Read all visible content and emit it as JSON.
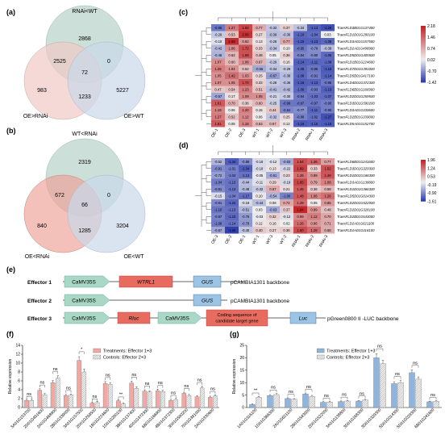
{
  "panels": {
    "a": "(a)",
    "b": "(b)",
    "c": "(c)",
    "d": "(d)",
    "e": "(e)",
    "f": "(f)",
    "g": "(g)"
  },
  "venn_a": {
    "labels": [
      "RNAi<WT",
      "OE>RNAi",
      "OE>WT"
    ],
    "regions": {
      "top_only": "2868",
      "top_left": "2525",
      "top_right": "0",
      "center": "72",
      "left_only": "983",
      "right_only": "5227",
      "bottom": "1233"
    },
    "colors": [
      "#bfd7d0",
      "#efc9c4",
      "#c9d9ea"
    ]
  },
  "venn_b": {
    "labels": [
      "WT<RNAi",
      "OE<RNAi",
      "OE<WT"
    ],
    "regions": {
      "top_only": "2319",
      "top_left": "672",
      "top_right": "0",
      "center": "66",
      "left_only": "840",
      "right_only": "3204",
      "bottom": "1285"
    },
    "colors": [
      "#bfd7d0",
      "#ee9f95",
      "#c9d9ea"
    ]
  },
  "heatmap_c": {
    "columns": [
      "OE-1",
      "OE-2",
      "OE-3",
      "WT-1",
      "WT-2",
      "WT-3",
      "RNAi-2",
      "RNAi-1",
      "RNAi-3"
    ],
    "genes": [
      "TraesFLD3B01G137400",
      "TraesFLD1D01G290100",
      "TraesFLD3A01G157500",
      "TraesFLD2A01G498900",
      "TraesFLD5D01G405500",
      "TraesFLD1B01G224600",
      "TraesFLD7D01G391000",
      "TraesFLD5B01G417100",
      "TraesFLD4D01G372300",
      "TraesFLD6B01G166900",
      "TraesFLD2D01G259500",
      "TraesFLD3D01G590200",
      "TraesFLD3A01G330600",
      "TraesFLD2B01G339000",
      "TraesFLD5A01G152700"
    ],
    "values": [
      [
        -0.95,
        1.27,
        1.82,
        0.77,
        -0.32,
        0.37,
        -0.34,
        -1.13,
        -1.28
      ],
      [
        -0.29,
        0.53,
        2.06,
        0.27,
        -0.39,
        -0.36,
        -1.1,
        -1.04,
        0.03
      ],
      [
        -0.1,
        2.09,
        0.92,
        0.13,
        -0.28,
        0.77,
        -1.15,
        -1.13,
        -1.08
      ],
      [
        -0.42,
        1.06,
        1.72,
        0.33,
        -0.34,
        0.1,
        -0.95,
        -0.78,
        -0.39
      ],
      [
        -0.46,
        0.62,
        1.69,
        0.48,
        0.05,
        0.36,
        -0.84,
        -0.8,
        -1.06
      ],
      [
        1.07,
        0.6,
        1.06,
        0.67,
        -0.29,
        0.16,
        -1.14,
        -1.11,
        -1.08
      ],
      [
        1.25,
        1.04,
        0.52,
        -0.55,
        -0.34,
        -0.29,
        -1.08,
        -0.96,
        -1.18
      ],
      [
        1.05,
        1.42,
        1.03,
        0.25,
        -0.67,
        -0.38,
        -1.08,
        -0.91,
        -1.14
      ],
      [
        1.07,
        1.05,
        1.7,
        0.33,
        -0.28,
        -0.36,
        -1.16,
        -1.13,
        -0.95
      ],
      [
        0.47,
        0.54,
        1.23,
        0.51,
        -0.41,
        -0.42,
        -1.08,
        -0.93,
        -1.15
      ],
      [
        -0.57,
        0.17,
        1.09,
        1.05,
        -0.21,
        -0.3,
        -0.94,
        -1.03,
        -1.07
      ],
      [
        1.61,
        0.7,
        0.36,
        0.6,
        -0.25,
        -0.96,
        -0.97,
        -0.97,
        -0.9
      ],
      [
        1.19,
        0.06,
        1.2,
        0.15,
        0.44,
        -0.84,
        -0.77,
        -1.11,
        -0.9
      ],
      [
        1.27,
        0.52,
        1.12,
        0.06,
        -0.32,
        0.25,
        -0.88,
        -1.02,
        -1.27
      ],
      [
        1.61,
        0.08,
        1.16,
        0.63,
        0.57,
        0.12,
        -1.19,
        -1.15,
        -1.19
      ]
    ],
    "scale": [
      "2.18",
      "1.46",
      "0.74",
      "0.02",
      "-0.70",
      "-1.42"
    ]
  },
  "heatmap_d": {
    "columns": [
      "OE-3",
      "OE-2",
      "OE-1",
      "WT-1",
      "WT-3",
      "WT-2",
      "RNAi-1",
      "RNAi-2",
      "RNAi-3"
    ],
    "genes": [
      "TraesFLD6B01G241600",
      "TraesFLD3D01G329300",
      "TraesFLD1D01G168300",
      "TraesFLD3A01G138800",
      "TraesFLD1D01G366300",
      "TraesFLD5D01G014300",
      "TraesFLD2D01G522000",
      "TraesFLD2D01G328100",
      "TraesFLD2B01G543000",
      "TraesFLD2A01G621100",
      "TraesFLD1A01G316100"
    ],
    "values": [
      [
        -0.52,
        -1.34,
        -0.88,
        -0.18,
        -0.12,
        -0.63,
        1.54,
        1.36,
        0.77
      ],
      [
        -0.91,
        -1.01,
        -1.34,
        -0.18,
        0.13,
        -0.22,
        1.69,
        0.33,
        1.52
      ],
      [
        -0.72,
        -1.04,
        -1.13,
        -0.05,
        -0.61,
        0.23,
        1.26,
        0.89,
        1.49
      ],
      [
        -1.04,
        -1.13,
        -0.44,
        -0.11,
        0.29,
        -0.19,
        1.65,
        0.79,
        1.08
      ],
      [
        -0.91,
        -1.13,
        -0.48,
        -0.32,
        0.67,
        0.21,
        1.45,
        0.36,
        0.58
      ],
      [
        -0.15,
        -1.04,
        -1.17,
        0.1,
        -0.54,
        -1.0,
        1.48,
        1.06,
        1.26
      ],
      [
        -0.91,
        -1.24,
        -0.18,
        -0.44,
        0.08,
        0.72,
        1.29,
        0.05,
        0.85
      ],
      [
        -1.1,
        -1.13,
        -0.51,
        0.03,
        -0.63,
        0.37,
        1.94,
        0.89,
        0.48
      ],
      [
        -0.97,
        -1.23,
        -0.76,
        -0.03,
        0.32,
        -0.12,
        0.99,
        1.12,
        0.7
      ],
      [
        -1.06,
        -1.14,
        -0.79,
        0.12,
        0.16,
        0.02,
        1.26,
        0.86,
        0.71
      ],
      [
        -0.67,
        -1.6,
        -0.4,
        0.4,
        0.27,
        0.36,
        1.6,
        1.28,
        0.68
      ]
    ],
    "scale": [
      "1.96",
      "1.24",
      "0.53",
      "-0.19",
      "-0.90",
      "-1.61"
    ]
  },
  "constructs": {
    "effector1": "Effector 1",
    "effector2": "Effector 2",
    "effector3": "Effector 3",
    "camv": "CaMV35S",
    "wtrl1": "WTRL1",
    "gus": "GUS",
    "rluc": "Rluc",
    "luc": "Luc",
    "coding1": "Coding sequence of",
    "coding2": "candidate target gene",
    "backbone1": "pCAMBIA1301 backbone",
    "backbone3": "pGreen0800 II -LUC backbone"
  },
  "chart_data": [
    {
      "type": "bar",
      "ylabel": "Relative expression",
      "ylim": [
        0,
        14
      ],
      "yticks": [
        "0",
        "2",
        "4",
        "6",
        "8",
        "10",
        "12",
        "14"
      ],
      "legend": [
        "Treatments: Effector 1+3",
        "Controls: Effector 2+3"
      ],
      "categories": [
        "5A01G153700",
        "2D01G451600",
        "2A01G468900",
        "2B01G339000",
        "3A01G157500",
        "2D01G259500",
        "1B01G224600",
        "1D01G290100",
        "3B01G137400",
        "4D01G372300",
        "6B01G166900",
        "4B01G372300",
        "3D01G590200",
        "7D01G391000",
        "2A01G330600"
      ],
      "series": [
        {
          "name": "Treatments",
          "values": [
            1.6,
            3.9,
            5.6,
            2.7,
            10.6,
            1.0,
            5.4,
            1.5,
            5.5,
            3.7,
            3.8,
            1.6,
            3.2,
            2.4,
            2.3
          ]
        },
        {
          "name": "Controls",
          "values": [
            1.6,
            2.9,
            6.6,
            2.8,
            8.0,
            1.1,
            5.2,
            0.8,
            4.3,
            3.5,
            3.6,
            1.8,
            2.7,
            4.4,
            2.6
          ]
        }
      ],
      "significance": [
        "ns",
        "ns",
        "ns",
        "ns",
        "*",
        "ns",
        "ns",
        "**",
        "ns",
        "ns",
        "ns",
        "ns",
        "ns",
        "ns",
        "ns"
      ]
    },
    {
      "type": "bar",
      "ylabel": "Relative expression",
      "ylim": [
        0,
        25
      ],
      "yticks": [
        "0",
        "5",
        "10",
        "15",
        "20",
        "25"
      ],
      "legend": [
        "Treatments: Effector 1+3",
        "Controls: Effector 2+3"
      ],
      "categories": [
        "1A01G316100",
        "1D01G366300",
        "2A01G621100",
        "2B01G543000",
        "2D01G522000",
        "3A01G138800",
        "3D01G168300",
        "3D01G329300",
        "5D01G014300",
        "5D01G029300",
        "6B01G241600"
      ],
      "series": [
        {
          "name": "Treatments",
          "values": [
            1.2,
            4.8,
            3.6,
            5.4,
            2.1,
            2.4,
            2.6,
            20.0,
            9.6,
            14.0,
            2.3
          ]
        },
        {
          "name": "Controls",
          "values": [
            4.1,
            5.2,
            3.3,
            4.5,
            2.2,
            2.6,
            3.0,
            17.6,
            10.0,
            11.4,
            2.5
          ]
        }
      ],
      "significance": [
        "**",
        "ns",
        "ns",
        "ns",
        "ns",
        "ns",
        "ns",
        "ns",
        "ns",
        "ns",
        "ns"
      ]
    }
  ]
}
